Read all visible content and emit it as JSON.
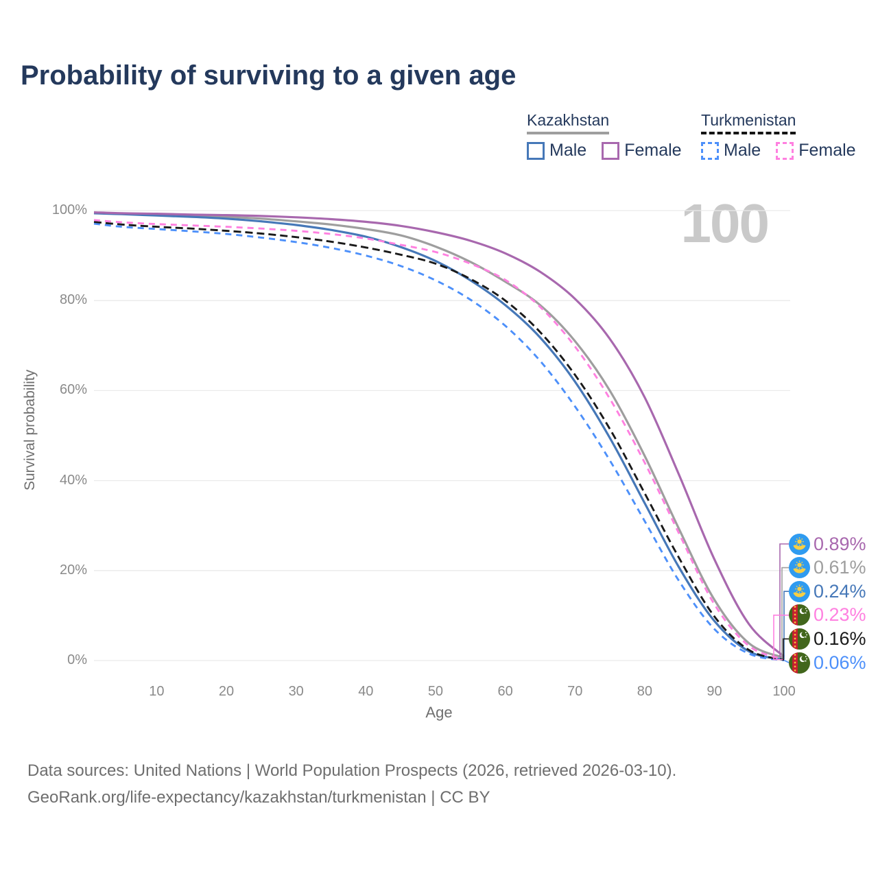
{
  "title": "Probability of surviving to a given age",
  "watermark": "100",
  "legend": {
    "groups": [
      {
        "name": "Kazakhstan",
        "line_style": "solid",
        "underline_color": "#9e9e9e",
        "items": [
          {
            "label": "Male",
            "color": "#4678b8"
          },
          {
            "label": "Female",
            "color": "#a868ae"
          }
        ]
      },
      {
        "name": "Turkmenistan",
        "line_style": "dashed",
        "underline_color": "#141414",
        "items": [
          {
            "label": "Male",
            "color": "#4d90fa"
          },
          {
            "label": "Female",
            "color": "#ff80e0"
          }
        ]
      }
    ]
  },
  "footer": {
    "line1": "Data sources: United Nations | World Population Prospects (2026, retrieved 2026-03-10).",
    "line2": "GeoRank.org/life-expectancy/kazakhstan/turkmenistan | CC BY"
  },
  "chart_data": {
    "type": "line",
    "title": "Probability of surviving to a given age",
    "xlabel": "Age",
    "ylabel": "Survival probability",
    "x_ticks": [
      10,
      20,
      30,
      40,
      50,
      60,
      70,
      80,
      90,
      100
    ],
    "y_ticks": [
      {
        "value": 0,
        "label": "0%"
      },
      {
        "value": 20,
        "label": "20%"
      },
      {
        "value": 40,
        "label": "40%"
      },
      {
        "value": 60,
        "label": "60%"
      },
      {
        "value": 80,
        "label": "80%"
      },
      {
        "value": 100,
        "label": "100%"
      }
    ],
    "xlim": [
      0,
      100
    ],
    "ylim": [
      0,
      100
    ],
    "grid": "horizontal",
    "ages": [
      1,
      5,
      10,
      15,
      20,
      25,
      30,
      35,
      40,
      45,
      50,
      55,
      60,
      65,
      70,
      75,
      80,
      85,
      90,
      95,
      100
    ],
    "series": [
      {
        "name": "Kazakhstan Female",
        "country": "kz",
        "style": "solid",
        "color": "#a868ae",
        "end_label": "0.89%",
        "values": [
          99.6,
          99.4,
          99.3,
          99.1,
          99.0,
          98.8,
          98.5,
          98.1,
          97.5,
          96.6,
          95.2,
          93.3,
          90.5,
          86.4,
          80.4,
          71.5,
          58.5,
          41.0,
          22.5,
          8.0,
          0.89
        ]
      },
      {
        "name": "Kazakhstan Both sexes",
        "country": "kz",
        "style": "solid",
        "color": "#9e9e9e",
        "end_label": "0.61%",
        "values": [
          99.5,
          99.3,
          99.1,
          98.9,
          98.6,
          98.2,
          97.6,
          96.9,
          95.9,
          94.5,
          92.0,
          88.6,
          84.2,
          79.0,
          71.0,
          60.0,
          45.5,
          29.0,
          13.5,
          3.8,
          0.61
        ]
      },
      {
        "name": "Kazakhstan Male",
        "country": "kz",
        "style": "solid",
        "color": "#4678b8",
        "end_label": "0.24%",
        "values": [
          99.4,
          99.2,
          98.9,
          98.6,
          98.2,
          97.6,
          96.8,
          95.7,
          94.2,
          91.9,
          88.8,
          84.5,
          79.0,
          71.8,
          62.0,
          49.5,
          35.0,
          20.5,
          8.8,
          2.0,
          0.24
        ]
      },
      {
        "name": "Turkmenistan Female",
        "country": "tm",
        "style": "dashed",
        "color": "#ff80e0",
        "end_label": "0.23%",
        "values": [
          97.9,
          97.4,
          97.0,
          96.7,
          96.4,
          96.0,
          95.5,
          94.8,
          93.8,
          92.4,
          90.8,
          88.2,
          84.6,
          78.6,
          69.8,
          58.2,
          44.0,
          28.0,
          12.5,
          3.2,
          0.23
        ]
      },
      {
        "name": "Turkmenistan Both sexes",
        "country": "tm",
        "style": "dashed",
        "color": "#1a1a1a",
        "end_label": "0.16%",
        "values": [
          97.5,
          96.9,
          96.4,
          96.0,
          95.5,
          94.9,
          94.1,
          93.1,
          91.8,
          90.2,
          88.2,
          84.8,
          80.0,
          73.0,
          63.5,
          51.5,
          37.2,
          22.6,
          9.8,
          2.3,
          0.16
        ]
      },
      {
        "name": "Turkmenistan Male",
        "country": "tm",
        "style": "dashed",
        "color": "#4d90fa",
        "end_label": "0.06%",
        "values": [
          97.1,
          96.4,
          95.9,
          95.4,
          94.8,
          94.0,
          93.0,
          91.7,
          90.0,
          87.7,
          84.5,
          80.2,
          74.4,
          66.6,
          56.5,
          44.5,
          31.0,
          17.5,
          7.0,
          1.5,
          0.06
        ]
      }
    ]
  }
}
